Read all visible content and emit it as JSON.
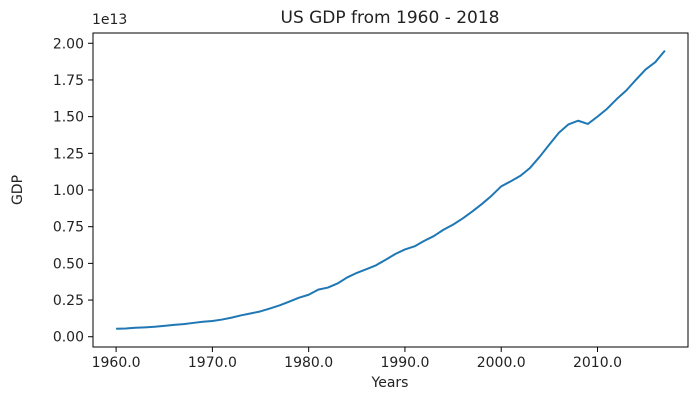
{
  "chart_data": {
    "type": "line",
    "title": "US GDP from 1960 - 2018",
    "xlabel": "Years",
    "ylabel": "GDP",
    "y_offset_label": "1e13",
    "xlim": [
      1957.6,
      2019.4
    ],
    "ylim": [
      -0.07,
      2.07
    ],
    "x_ticks": [
      1960,
      1970,
      1980,
      1990,
      2000,
      2010
    ],
    "x_tick_labels": [
      "1960.0",
      "1970.0",
      "1980.0",
      "1990.0",
      "2000.0",
      "2010.0"
    ],
    "y_ticks": [
      0.0,
      0.25,
      0.5,
      0.75,
      1.0,
      1.25,
      1.5,
      1.75,
      2.0
    ],
    "y_tick_labels": [
      "0.00",
      "0.25",
      "0.50",
      "0.75",
      "1.00",
      "1.25",
      "1.50",
      "1.75",
      "2.00"
    ],
    "grid": false,
    "line_color": "#1f77b4",
    "series": [
      {
        "x": [
          1960,
          1961,
          1962,
          1963,
          1964,
          1965,
          1966,
          1967,
          1968,
          1969,
          1970,
          1971,
          1972,
          1973,
          1974,
          1975,
          1976,
          1977,
          1978,
          1979,
          1980,
          1981,
          1982,
          1983,
          1984,
          1985,
          1986,
          1987,
          1988,
          1989,
          1990,
          1991,
          1992,
          1993,
          1994,
          1995,
          1996,
          1997,
          1998,
          1999,
          2000,
          2001,
          2002,
          2003,
          2004,
          2005,
          2006,
          2007,
          2008,
          2009,
          2010,
          2011,
          2012,
          2013,
          2014,
          2015,
          2016,
          2017
        ],
        "values": [
          0.054,
          0.056,
          0.061,
          0.064,
          0.068,
          0.074,
          0.081,
          0.086,
          0.094,
          0.102,
          0.107,
          0.117,
          0.13,
          0.146,
          0.159,
          0.173,
          0.193,
          0.214,
          0.24,
          0.266,
          0.286,
          0.321,
          0.335,
          0.363,
          0.404,
          0.435,
          0.46,
          0.487,
          0.525,
          0.564,
          0.595,
          0.616,
          0.653,
          0.686,
          0.729,
          0.764,
          0.806,
          0.854,
          0.905,
          0.961,
          1.025,
          1.06,
          1.097,
          1.151,
          1.227,
          1.31,
          1.391,
          1.448,
          1.472,
          1.45,
          1.5,
          1.554,
          1.62,
          1.679,
          1.752,
          1.822,
          1.871,
          1.95
        ]
      }
    ]
  }
}
